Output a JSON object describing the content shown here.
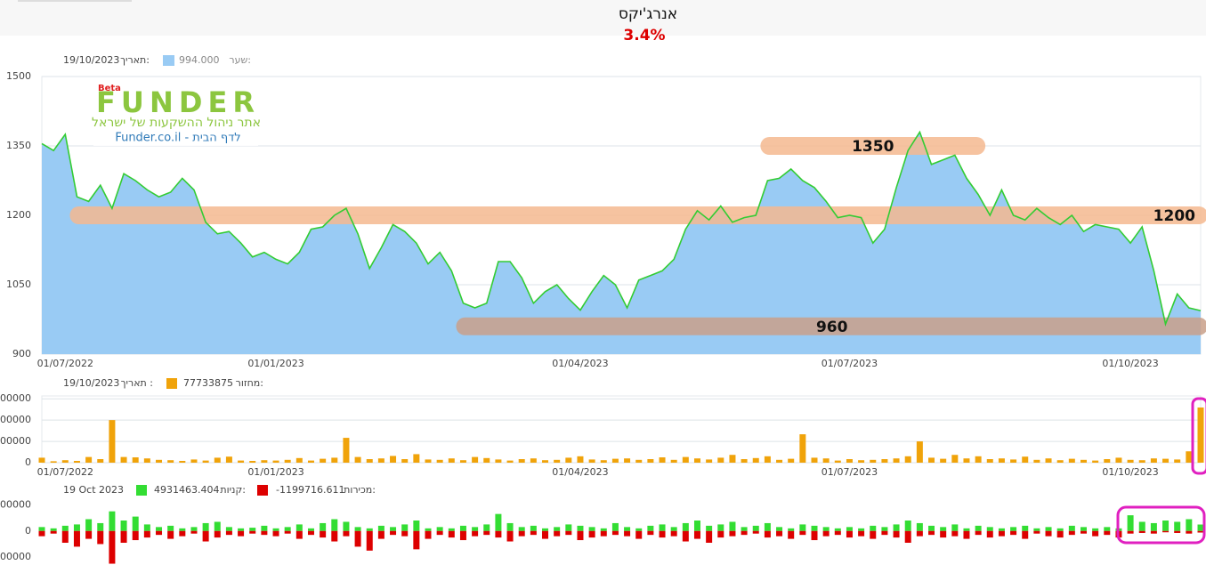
{
  "header": {
    "title": "אנרג'יקס",
    "change": "3.4%"
  },
  "logo": {
    "beta": "Beta",
    "brand": "FUNDER",
    "tagline": "אתר ניהול ההשקעות של ישראל",
    "link": "Funder.co.il - לדף הבית"
  },
  "chart_data": [
    {
      "type": "area",
      "ylim": [
        900,
        1500
      ],
      "yticks": [
        900,
        1050,
        1200,
        1350,
        1500
      ],
      "grid": true,
      "legend_value": "994.000",
      "legend_date_label": "תאריך:",
      "legend_date": "19/10/2023",
      "categories": [
        null,
        null,
        "01/07/2022",
        null,
        null,
        null,
        null,
        null,
        null,
        null,
        null,
        null,
        null,
        null,
        null,
        null,
        null,
        null,
        null,
        null,
        "01/01/2023",
        null,
        null,
        null,
        null,
        null,
        null,
        null,
        null,
        null,
        null,
        null,
        null,
        null,
        null,
        null,
        null,
        null,
        null,
        null,
        null,
        null,
        null,
        null,
        null,
        null,
        "01/04/2023",
        null,
        null,
        null,
        null,
        null,
        null,
        null,
        null,
        null,
        null,
        null,
        null,
        null,
        null,
        null,
        null,
        null,
        null,
        null,
        null,
        null,
        null,
        "01/07/2023",
        null,
        null,
        null,
        null,
        null,
        null,
        null,
        null,
        null,
        null,
        null,
        null,
        null,
        null,
        null,
        null,
        null,
        null,
        null,
        null,
        null,
        null,
        null,
        "01/10/2023",
        null,
        null,
        null,
        null,
        null,
        null
      ],
      "series": [
        {
          "name": "שער:",
          "color": "#33cc33",
          "fill": "#99cbf4",
          "values": [
            1355,
            1340,
            1375,
            1240,
            1230,
            1265,
            1215,
            1290,
            1275,
            1255,
            1240,
            1250,
            1280,
            1255,
            1185,
            1160,
            1165,
            1140,
            1110,
            1120,
            1105,
            1095,
            1120,
            1170,
            1175,
            1200,
            1215,
            1160,
            1085,
            1130,
            1180,
            1165,
            1140,
            1095,
            1120,
            1080,
            1010,
            1000,
            1010,
            1100,
            1100,
            1065,
            1010,
            1035,
            1050,
            1020,
            995,
            1035,
            1070,
            1050,
            1000,
            1060,
            1070,
            1080,
            1105,
            1170,
            1210,
            1190,
            1220,
            1185,
            1195,
            1200,
            1275,
            1280,
            1300,
            1275,
            1260,
            1230,
            1195,
            1200,
            1195,
            1140,
            1170,
            1260,
            1340,
            1380,
            1310,
            1320,
            1330,
            1280,
            1245,
            1200,
            1255,
            1200,
            1190,
            1215,
            1195,
            1180,
            1200,
            1165,
            1180,
            1175,
            1170,
            1140,
            1175,
            1080,
            965,
            1030,
            1000,
            994
          ]
        }
      ],
      "bands": [
        {
          "value": 1350,
          "start": 62,
          "end": 80,
          "color": "#f5b98f"
        },
        {
          "value": 1200,
          "start": 3,
          "end": 99,
          "color": "#f5b98f"
        },
        {
          "value": 960,
          "start": 36,
          "end": 99,
          "color": "#c9a08a"
        }
      ]
    },
    {
      "type": "bar",
      "ylim": [
        0,
        94000000
      ],
      "yticks": [
        0,
        {
          "value": 30000000,
          "label": "000000"
        },
        {
          "value": 60000000,
          "label": "000000"
        },
        {
          "value": 90000000,
          "label": "00000"
        }
      ],
      "grid": true,
      "legend_date_label": "תאריך :",
      "legend_date": "19/10/2023",
      "categories": [
        null,
        null,
        "01/07/2022",
        null,
        null,
        null,
        null,
        null,
        null,
        null,
        null,
        null,
        null,
        null,
        null,
        null,
        null,
        null,
        null,
        null,
        "01/01/2023",
        null,
        null,
        null,
        null,
        null,
        null,
        null,
        null,
        null,
        null,
        null,
        null,
        null,
        null,
        null,
        null,
        null,
        null,
        null,
        null,
        null,
        null,
        null,
        null,
        null,
        "01/04/2023",
        null,
        null,
        null,
        null,
        null,
        null,
        null,
        null,
        null,
        null,
        null,
        null,
        null,
        null,
        null,
        null,
        null,
        null,
        null,
        null,
        null,
        null,
        "01/07/2023",
        null,
        null,
        null,
        null,
        null,
        null,
        null,
        null,
        null,
        null,
        null,
        null,
        null,
        null,
        null,
        null,
        null,
        null,
        null,
        null,
        null,
        null,
        null,
        "01/10/2023",
        null,
        null,
        null,
        null,
        null,
        null
      ],
      "series": [
        {
          "name": "מחזור:",
          "color": "#f0a30a",
          "values": [
            7000000,
            2000000,
            3500000,
            2500000,
            8000000,
            5000000,
            60000000,
            8000000,
            7500000,
            6000000,
            4000000,
            3500000,
            2500000,
            4500000,
            3000000,
            7000000,
            8500000,
            3000000,
            2500000,
            3500000,
            3000000,
            4000000,
            6500000,
            3000000,
            5500000,
            7000000,
            35000000,
            8000000,
            5000000,
            6000000,
            9500000,
            5000000,
            12000000,
            4500000,
            4000000,
            6000000,
            3500000,
            8000000,
            6500000,
            4500000,
            3000000,
            5000000,
            6000000,
            3500000,
            4000000,
            7000000,
            9000000,
            4500000,
            3500000,
            5500000,
            6000000,
            4000000,
            5000000,
            7500000,
            4000000,
            8000000,
            6000000,
            4500000,
            7000000,
            11000000,
            5000000,
            6500000,
            9000000,
            4000000,
            5500000,
            40000000,
            7000000,
            6000000,
            3000000,
            5000000,
            3500000,
            4000000,
            5000000,
            6000000,
            9000000,
            30000000,
            7000000,
            5500000,
            11000000,
            6000000,
            9000000,
            5000000,
            6000000,
            4500000,
            8500000,
            4000000,
            6000000,
            3500000,
            5500000,
            4000000,
            3000000,
            5000000,
            7000000,
            4000000,
            3500000,
            6000000,
            5500000,
            4500000,
            16000000,
            77733875
          ]
        }
      ]
    },
    {
      "type": "bar",
      "ylim": [
        -26000000,
        25000000
      ],
      "yticks": [
        {
          "value": -20000000,
          "label": "00000"
        },
        0,
        {
          "value": 20000000,
          "label": "00000"
        }
      ],
      "grid": false,
      "legend_date": "19 Oct 2023",
      "series": [
        {
          "name": "קניות:",
          "color": "#33dd33",
          "values": [
            3000000,
            2000000,
            4000000,
            5000000,
            9000000,
            6000000,
            15000000,
            8000000,
            11000000,
            5000000,
            3000000,
            4000000,
            2000000,
            3000000,
            6000000,
            7000000,
            3000000,
            2000000,
            2500000,
            4000000,
            2000000,
            3000000,
            5000000,
            2000000,
            6000000,
            9000000,
            7000000,
            3000000,
            2000000,
            4000000,
            3000000,
            5000000,
            8000000,
            2000000,
            3000000,
            2000000,
            4000000,
            3000000,
            5000000,
            13000000,
            6000000,
            3000000,
            4000000,
            2000000,
            3000000,
            5000000,
            4000000,
            3000000,
            2000000,
            6000000,
            3000000,
            2000000,
            4000000,
            5000000,
            3000000,
            6000000,
            8000000,
            4000000,
            5000000,
            7000000,
            3000000,
            4000000,
            6000000,
            3000000,
            2000000,
            5000000,
            4000000,
            3000000,
            2000000,
            3000000,
            2000000,
            4000000,
            3000000,
            5000000,
            8000000,
            6000000,
            4000000,
            3000000,
            5000000,
            2000000,
            4000000,
            3000000,
            2000000,
            3000000,
            4000000,
            2000000,
            3000000,
            2000000,
            4000000,
            3000000,
            2000000,
            3000000,
            2000000,
            12000000,
            7000000,
            6000000,
            8000000,
            7000000,
            9000000,
            4931463.404
          ]
        },
        {
          "name": "מכירות:",
          "color": "#dd0000",
          "values": [
            -4000000,
            -2000000,
            -9000000,
            -12000000,
            -6000000,
            -10000000,
            -25000000,
            -9000000,
            -7000000,
            -5000000,
            -3000000,
            -6000000,
            -4000000,
            -2000000,
            -8000000,
            -5000000,
            -3000000,
            -4000000,
            -2000000,
            -3000000,
            -4000000,
            -2000000,
            -6000000,
            -3000000,
            -5000000,
            -8000000,
            -4000000,
            -12000000,
            -15000000,
            -6000000,
            -3000000,
            -4000000,
            -14000000,
            -6000000,
            -3000000,
            -5000000,
            -7000000,
            -4000000,
            -3000000,
            -5000000,
            -8000000,
            -4000000,
            -3000000,
            -6000000,
            -4000000,
            -3000000,
            -7000000,
            -5000000,
            -4000000,
            -3000000,
            -4000000,
            -6000000,
            -3000000,
            -5000000,
            -4000000,
            -8000000,
            -6000000,
            -9000000,
            -5000000,
            -4000000,
            -3000000,
            -2000000,
            -5000000,
            -4000000,
            -6000000,
            -3000000,
            -7000000,
            -4000000,
            -3000000,
            -5000000,
            -4000000,
            -6000000,
            -3000000,
            -5000000,
            -9000000,
            -4000000,
            -3000000,
            -5000000,
            -4000000,
            -6000000,
            -3000000,
            -5000000,
            -4000000,
            -3000000,
            -6000000,
            -2000000,
            -4000000,
            -5000000,
            -3000000,
            -2000000,
            -4000000,
            -3000000,
            -5000000,
            -2000000,
            -1500000,
            -2000000,
            -1000000,
            -1500000,
            -2000000,
            -1199716.611
          ]
        }
      ]
    }
  ]
}
